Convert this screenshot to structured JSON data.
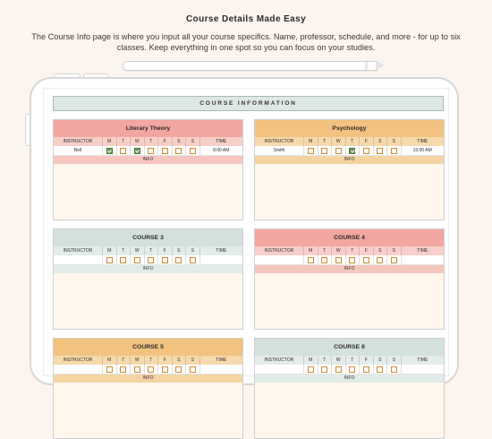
{
  "marketing": {
    "headline": "Course Details Made Easy",
    "description": "The Course Info page is where you input all your course specifics. Name, professor, schedule, and more - for up to six classes. Keep everything in one spot so you can focus on your studies."
  },
  "page": {
    "title": "COURSE INFORMATION"
  },
  "schedule_header": {
    "instructor": "INSTRUCTOR",
    "days": [
      "M",
      "T",
      "W",
      "T",
      "F",
      "S",
      "S"
    ],
    "time": "TIME"
  },
  "info_label": "INFO",
  "colors": {
    "red": "#f3a5a1",
    "orange": "#f2c27e",
    "green": "#d3e1dc",
    "check": "#6a9a5a"
  },
  "courses": [
    {
      "name": "Literary Theory",
      "instructor": "Bell",
      "days": [
        true,
        false,
        true,
        false,
        false,
        false,
        false
      ],
      "time": "8:00 AM"
    },
    {
      "name": "Psychology",
      "instructor": "Smith",
      "days": [
        false,
        false,
        false,
        true,
        false,
        false,
        false
      ],
      "time": "10:00 AM"
    },
    {
      "name": "COURSE 3",
      "instructor": "",
      "days": [
        false,
        false,
        false,
        false,
        false,
        false,
        false
      ],
      "time": ""
    },
    {
      "name": "COURSE 4",
      "instructor": "",
      "days": [
        false,
        false,
        false,
        false,
        false,
        false,
        false
      ],
      "time": ""
    },
    {
      "name": "COURSE 5",
      "instructor": "",
      "days": [
        false,
        false,
        false,
        false,
        false,
        false,
        false
      ],
      "time": ""
    },
    {
      "name": "COURSE 6",
      "instructor": "",
      "days": [
        false,
        false,
        false,
        false,
        false,
        false,
        false
      ],
      "time": ""
    }
  ]
}
